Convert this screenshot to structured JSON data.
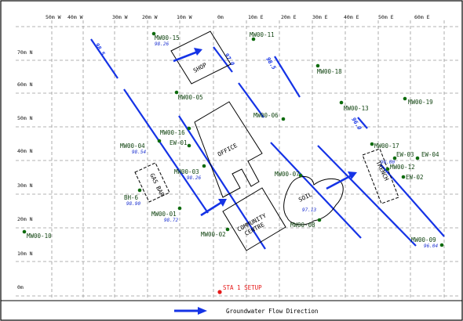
{
  "axis": {
    "x_labels": [
      "50m W",
      "40m W",
      "30m W",
      "20m W",
      "10m W",
      "0m",
      "10m E",
      "20m E",
      "30m E",
      "40m E",
      "50m E",
      "60m E"
    ],
    "y_labels": [
      "70m N",
      "60m N",
      "50m N",
      "40m N",
      "30m N",
      "20m N",
      "10m N",
      "0m"
    ]
  },
  "contours": [
    {
      "label": "98.5"
    },
    {
      "label": "97.0"
    },
    {
      "label": "98.5"
    },
    {
      "label": "96.0"
    }
  ],
  "buildings": [
    {
      "name": "SHOP"
    },
    {
      "name": "OFFICE"
    },
    {
      "name": "COMMUNITY CENTRE"
    },
    {
      "name": "GAS BAR"
    },
    {
      "name": "TRENCH"
    },
    {
      "name": "SOIL"
    }
  ],
  "wells": [
    {
      "id": "MW00-15",
      "elev": "98.26"
    },
    {
      "id": "MW00-11",
      "elev": ""
    },
    {
      "id": "MW00-18",
      "elev": ""
    },
    {
      "id": "MW00-05",
      "elev": ""
    },
    {
      "id": "MW00-06",
      "elev": ""
    },
    {
      "id": "MW00-13",
      "elev": ""
    },
    {
      "id": "MW00-19",
      "elev": ""
    },
    {
      "id": "MW00-16",
      "elev": ""
    },
    {
      "id": "EW-01",
      "elev": ""
    },
    {
      "id": "MW00-04",
      "elev": "98.54"
    },
    {
      "id": "MW00-03",
      "elev": "98.26"
    },
    {
      "id": "BH-6",
      "elev": "98.90"
    },
    {
      "id": "MW00-01",
      "elev": "98.72"
    },
    {
      "id": "MW00-02",
      "elev": ""
    },
    {
      "id": "MW00-07",
      "elev": ""
    },
    {
      "id": "MW00-08",
      "elev": ""
    },
    {
      "id": "SOIL_ELEV",
      "elev": "97.13"
    },
    {
      "id": "MW00-17",
      "elev": ""
    },
    {
      "id": "EW-03",
      "elev": ""
    },
    {
      "id": "EW-04",
      "elev": ""
    },
    {
      "id": "MW00-12",
      "elev": "96.00"
    },
    {
      "id": "EW-02",
      "elev": ""
    },
    {
      "id": "MW00-09",
      "elev": "96.04"
    },
    {
      "id": "MW00-10",
      "elev": ""
    }
  ],
  "setup": {
    "label": "STA 1 SETUP"
  },
  "legend": {
    "label": "Groundwater Flow Direction"
  },
  "colors": {
    "contour": "#1533e6",
    "well_dot": "#0d6b0d",
    "setup_point": "#e61a1a",
    "setup_text": "#e61a1a"
  }
}
